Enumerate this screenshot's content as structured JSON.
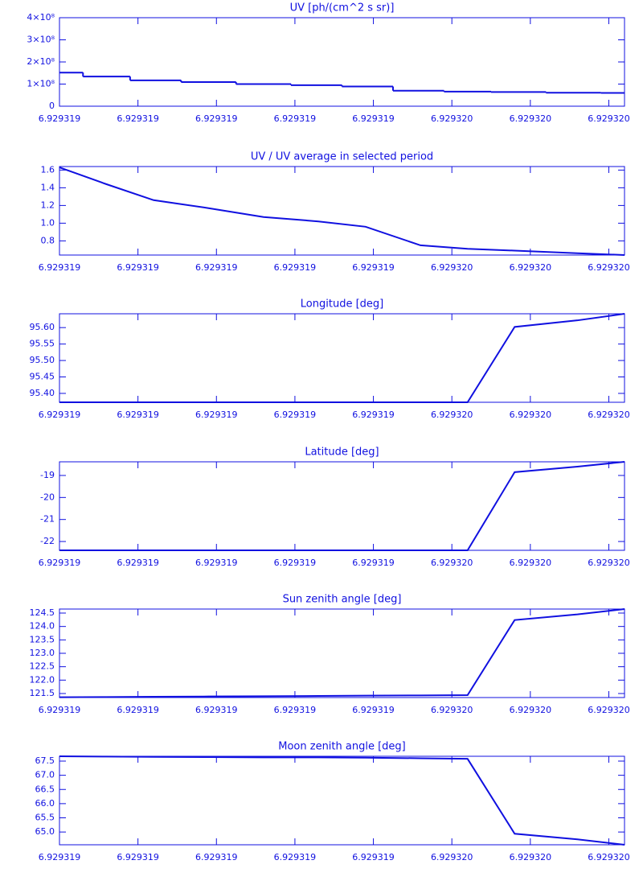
{
  "chart_data": [
    {
      "type": "step",
      "title": "UV [ph/(cm^2 s sr)]",
      "color": "#1010e0",
      "x": [
        6.929319,
        6.92931906,
        6.92931912,
        6.92931919,
        6.92931926,
        6.92931933,
        6.92931939,
        6.92931946,
        6.92931952,
        6.92931958,
        6.92931966,
        6.92931972
      ],
      "values": [
        152000000,
        134000000,
        117000000,
        109000000,
        100000000,
        95000000,
        89000000,
        70000000,
        66000000,
        64000000,
        61000000,
        60000000
      ],
      "xlim": [
        6.929319,
        6.92931972
      ],
      "xticks": [
        {
          "value": 6.929319,
          "label": "6.929319"
        },
        {
          "value": 6.9293191,
          "label": "6.929319"
        },
        {
          "value": 6.9293192,
          "label": "6.929319"
        },
        {
          "value": 6.9293193,
          "label": "6.929319"
        },
        {
          "value": 6.9293194,
          "label": "6.929319"
        },
        {
          "value": 6.9293195,
          "label": "6.929320"
        },
        {
          "value": 6.9293196,
          "label": "6.929320"
        },
        {
          "value": 6.9293197,
          "label": "6.929320"
        }
      ],
      "ylim": [
        0,
        400000000
      ],
      "yticks": [
        0,
        {
          "value": 100000000,
          "label": "1×10⁸"
        },
        {
          "value": 200000000,
          "label": "2×10⁸"
        },
        {
          "value": 300000000,
          "label": "3×10⁸"
        },
        {
          "value": 400000000,
          "label": "4×10⁸"
        }
      ]
    },
    {
      "type": "line",
      "title": "UV / UV average in selected period",
      "color": "#1010e0",
      "x": [
        6.929319,
        6.92931906,
        6.92931912,
        6.92931919,
        6.92931926,
        6.92931933,
        6.92931939,
        6.92931946,
        6.92931952,
        6.92931958,
        6.92931966,
        6.92931972
      ],
      "values": [
        1.63,
        1.44,
        1.26,
        1.17,
        1.07,
        1.02,
        0.96,
        0.75,
        0.71,
        0.69,
        0.66,
        0.64
      ],
      "xlim": [
        6.929319,
        6.92931972
      ],
      "xticks": [
        {
          "value": 6.929319,
          "label": "6.929319"
        },
        {
          "value": 6.9293191,
          "label": "6.929319"
        },
        {
          "value": 6.9293192,
          "label": "6.929319"
        },
        {
          "value": 6.9293193,
          "label": "6.929319"
        },
        {
          "value": 6.9293194,
          "label": "6.929319"
        },
        {
          "value": 6.9293195,
          "label": "6.929320"
        },
        {
          "value": 6.9293196,
          "label": "6.929320"
        },
        {
          "value": 6.9293197,
          "label": "6.929320"
        }
      ],
      "ylim": [
        0.64,
        1.64
      ],
      "yticks": [
        0.8,
        {
          "value": 1.0,
          "label": "1.0"
        },
        1.2,
        1.4,
        1.6
      ]
    },
    {
      "type": "line",
      "title": "Longitude [deg]",
      "color": "#1010e0",
      "x": [
        6.929319,
        6.92931906,
        6.92931912,
        6.92931919,
        6.92931926,
        6.92931933,
        6.92931939,
        6.92931946,
        6.92931952,
        6.92931958,
        6.92931966,
        6.92931972
      ],
      "values": [
        95.373,
        95.373,
        95.373,
        95.373,
        95.373,
        95.373,
        95.373,
        95.373,
        95.373,
        95.602,
        95.622,
        95.642
      ],
      "xlim": [
        6.929319,
        6.92931972
      ],
      "xticks": [
        {
          "value": 6.929319,
          "label": "6.929319"
        },
        {
          "value": 6.9293191,
          "label": "6.929319"
        },
        {
          "value": 6.9293192,
          "label": "6.929319"
        },
        {
          "value": 6.9293193,
          "label": "6.929319"
        },
        {
          "value": 6.9293194,
          "label": "6.929319"
        },
        {
          "value": 6.9293195,
          "label": "6.929320"
        },
        {
          "value": 6.9293196,
          "label": "6.929320"
        },
        {
          "value": 6.9293197,
          "label": "6.929320"
        }
      ],
      "ylim": [
        95.373,
        95.642
      ],
      "yticks": [
        {
          "value": 95.4,
          "label": "95.40"
        },
        95.45,
        {
          "value": 95.5,
          "label": "95.50"
        },
        95.55,
        {
          "value": 95.6,
          "label": "95.60"
        }
      ]
    },
    {
      "type": "line",
      "title": "Latitude [deg]",
      "color": "#1010e0",
      "x": [
        6.929319,
        6.92931906,
        6.92931912,
        6.92931919,
        6.92931926,
        6.92931933,
        6.92931939,
        6.92931946,
        6.92931952,
        6.92931958,
        6.92931966,
        6.92931972
      ],
      "values": [
        -22.4,
        -22.4,
        -22.4,
        -22.4,
        -22.4,
        -22.4,
        -22.4,
        -22.4,
        -22.4,
        -18.85,
        -18.6,
        -18.38
      ],
      "xlim": [
        6.929319,
        6.92931972
      ],
      "xticks": [
        {
          "value": 6.929319,
          "label": "6.929319"
        },
        {
          "value": 6.9293191,
          "label": "6.929319"
        },
        {
          "value": 6.9293192,
          "label": "6.929319"
        },
        {
          "value": 6.9293193,
          "label": "6.929319"
        },
        {
          "value": 6.9293194,
          "label": "6.929319"
        },
        {
          "value": 6.9293195,
          "label": "6.929320"
        },
        {
          "value": 6.9293196,
          "label": "6.929320"
        },
        {
          "value": 6.9293197,
          "label": "6.929320"
        }
      ],
      "ylim": [
        -22.4,
        -18.38
      ],
      "yticks": [
        -22,
        -21,
        -20,
        -19
      ]
    },
    {
      "type": "line",
      "title": "Sun zenith angle [deg]",
      "color": "#1010e0",
      "x": [
        6.929319,
        6.92931906,
        6.92931912,
        6.92931919,
        6.92931926,
        6.92931933,
        6.92931939,
        6.92931946,
        6.92931952,
        6.92931958,
        6.92931966,
        6.92931972
      ],
      "values": [
        121.36,
        121.37,
        121.38,
        121.39,
        121.4,
        121.41,
        121.42,
        121.43,
        121.44,
        124.24,
        124.45,
        124.65
      ],
      "xlim": [
        6.929319,
        6.92931972
      ],
      "xticks": [
        {
          "value": 6.929319,
          "label": "6.929319"
        },
        {
          "value": 6.9293191,
          "label": "6.929319"
        },
        {
          "value": 6.9293192,
          "label": "6.929319"
        },
        {
          "value": 6.9293193,
          "label": "6.929319"
        },
        {
          "value": 6.9293194,
          "label": "6.929319"
        },
        {
          "value": 6.9293195,
          "label": "6.929320"
        },
        {
          "value": 6.9293196,
          "label": "6.929320"
        },
        {
          "value": 6.9293197,
          "label": "6.929320"
        }
      ],
      "ylim": [
        121.35,
        124.65
      ],
      "yticks": [
        121.5,
        {
          "value": 122,
          "label": "122.0"
        },
        122.5,
        {
          "value": 123,
          "label": "123.0"
        },
        123.5,
        {
          "value": 124,
          "label": "124.0"
        },
        124.5
      ]
    },
    {
      "type": "line",
      "title": "Moon zenith angle [deg]",
      "color": "#1010e0",
      "x": [
        6.929319,
        6.92931906,
        6.92931912,
        6.92931919,
        6.92931926,
        6.92931933,
        6.92931939,
        6.92931946,
        6.92931952,
        6.92931958,
        6.92931966,
        6.92931972
      ],
      "values": [
        67.67,
        67.66,
        67.65,
        67.64,
        67.63,
        67.63,
        67.62,
        67.6,
        67.58,
        64.94,
        64.74,
        64.55
      ],
      "xlim": [
        6.929319,
        6.92931972
      ],
      "xticks": [
        {
          "value": 6.929319,
          "label": "6.929319"
        },
        {
          "value": 6.9293191,
          "label": "6.929319"
        },
        {
          "value": 6.9293192,
          "label": "6.929319"
        },
        {
          "value": 6.9293193,
          "label": "6.929319"
        },
        {
          "value": 6.9293194,
          "label": "6.929319"
        },
        {
          "value": 6.9293195,
          "label": "6.929320"
        },
        {
          "value": 6.9293196,
          "label": "6.929320"
        },
        {
          "value": 6.9293197,
          "label": "6.929320"
        }
      ],
      "ylim": [
        64.55,
        67.67
      ],
      "yticks": [
        {
          "value": 65,
          "label": "65.0"
        },
        65.5,
        {
          "value": 66,
          "label": "66.0"
        },
        66.5,
        {
          "value": 67,
          "label": "67.0"
        },
        67.5
      ]
    }
  ]
}
